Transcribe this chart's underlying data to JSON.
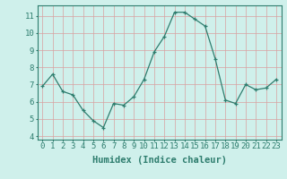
{
  "x": [
    0,
    1,
    2,
    3,
    4,
    5,
    6,
    7,
    8,
    9,
    10,
    11,
    12,
    13,
    14,
    15,
    16,
    17,
    18,
    19,
    20,
    21,
    22,
    23
  ],
  "y": [
    6.9,
    7.6,
    6.6,
    6.4,
    5.5,
    4.9,
    4.5,
    5.9,
    5.8,
    6.3,
    7.3,
    8.9,
    9.8,
    11.2,
    11.2,
    10.8,
    10.4,
    8.5,
    6.1,
    5.9,
    7.0,
    6.7,
    6.8,
    7.3
  ],
  "xlabel": "Humidex (Indice chaleur)",
  "line_color": "#2e7d6e",
  "marker_color": "#2e7d6e",
  "bg_color": "#cff0eb",
  "grid_color": "#d8a0a0",
  "ylim": [
    3.8,
    11.6
  ],
  "xlim": [
    -0.5,
    23.5
  ],
  "yticks": [
    4,
    5,
    6,
    7,
    8,
    9,
    10,
    11
  ],
  "xticks": [
    0,
    1,
    2,
    3,
    4,
    5,
    6,
    7,
    8,
    9,
    10,
    11,
    12,
    13,
    14,
    15,
    16,
    17,
    18,
    19,
    20,
    21,
    22,
    23
  ],
  "tick_label_fontsize": 6.5,
  "xlabel_fontsize": 7.5
}
